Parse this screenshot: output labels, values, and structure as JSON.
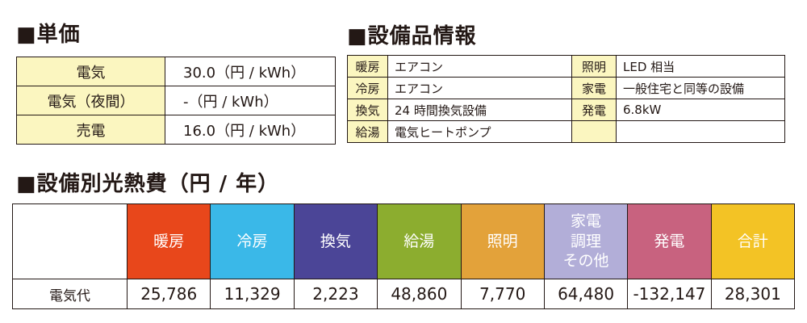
{
  "unit_price": {
    "title": "■単価",
    "rows": [
      [
        "電気",
        "30.0（円 / kWh）"
      ],
      [
        "電気（夜間）",
        "-（円 / kWh）"
      ],
      [
        "売電",
        "16.0（円 / kWh）"
      ]
    ]
  },
  "equipment": {
    "title": "■設備品情報",
    "rows": [
      [
        "暖房",
        "エアコン",
        "照明",
        "LED 相当"
      ],
      [
        "冷房",
        "エアコン",
        "家電",
        "一般住宅と同等の設備"
      ],
      [
        "換気",
        "24 時間換気設備",
        "発電",
        "6.8kW"
      ],
      [
        "給湯",
        "電気ヒートポンプ"
      ]
    ]
  },
  "costs": {
    "title": "■設備別光熱費（円 / 年）",
    "header": [
      "暖房",
      "冷房",
      "換気",
      "給湯",
      "照明",
      "家電\n調理\nその他",
      "発電",
      "合計"
    ],
    "colors": [
      "#e8471b",
      "#3ab8e8",
      "#4b4597",
      "#8cad2f",
      "#e3a23a",
      "#b2aed8",
      "#c8627f",
      "#f3c325"
    ],
    "row_label": "電気代",
    "values": [
      "25,786",
      "11,329",
      "2,223",
      "48,860",
      "7,770",
      "64,480",
      "-132,147",
      "28,301"
    ]
  }
}
